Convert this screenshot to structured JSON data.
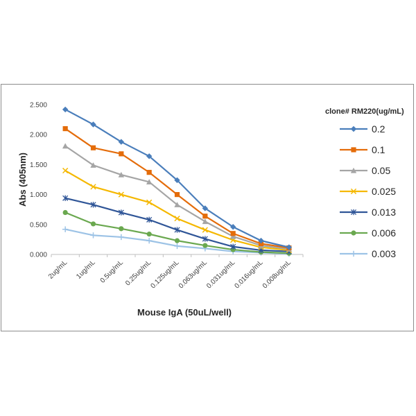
{
  "chart_data": {
    "type": "line",
    "title": "",
    "xlabel": "Mouse IgA (50uL/well)",
    "ylabel": "Abs (405nm)",
    "ylim": [
      0,
      2.5
    ],
    "y_ticks": [
      "0.000",
      "0.500",
      "1.000",
      "1.500",
      "2.000",
      "2.500"
    ],
    "categories": [
      "2ug/mL",
      "1ug/mL",
      "0.5ug/mL",
      "0.25ug/mL",
      "0.125ug/mL",
      "0.063ug/mL",
      "0.031ug/mL",
      "0.016ug/mL",
      "0.008ug/mL"
    ],
    "grid": false,
    "legend_title": "clone# RM220(ug/mL)",
    "legend_position": "right",
    "series": [
      {
        "name": "0.2",
        "color": "#4a7ebb",
        "marker": "diamond",
        "values": [
          2.42,
          2.17,
          1.88,
          1.64,
          1.24,
          0.77,
          0.46,
          0.23,
          0.12
        ]
      },
      {
        "name": "0.1",
        "color": "#e46c0a",
        "marker": "square",
        "values": [
          2.1,
          1.78,
          1.68,
          1.37,
          1.0,
          0.64,
          0.35,
          0.18,
          0.11
        ]
      },
      {
        "name": "0.05",
        "color": "#a5a5a5",
        "marker": "triangle",
        "values": [
          1.81,
          1.49,
          1.33,
          1.21,
          0.83,
          0.55,
          0.3,
          0.15,
          0.09
        ]
      },
      {
        "name": "0.025",
        "color": "#f5b800",
        "marker": "x",
        "values": [
          1.4,
          1.13,
          1.0,
          0.87,
          0.6,
          0.41,
          0.24,
          0.12,
          0.07
        ]
      },
      {
        "name": "0.013",
        "color": "#2f5597",
        "marker": "star",
        "values": [
          0.94,
          0.83,
          0.7,
          0.58,
          0.41,
          0.26,
          0.13,
          0.07,
          0.05
        ]
      },
      {
        "name": "0.006",
        "color": "#6aa84f",
        "marker": "circle",
        "values": [
          0.7,
          0.51,
          0.43,
          0.34,
          0.23,
          0.15,
          0.08,
          0.04,
          0.02
        ]
      },
      {
        "name": "0.003",
        "color": "#9dc3e6",
        "marker": "plus",
        "values": [
          0.42,
          0.32,
          0.29,
          0.23,
          0.14,
          0.1,
          0.05,
          0.03,
          0.01
        ]
      }
    ]
  }
}
